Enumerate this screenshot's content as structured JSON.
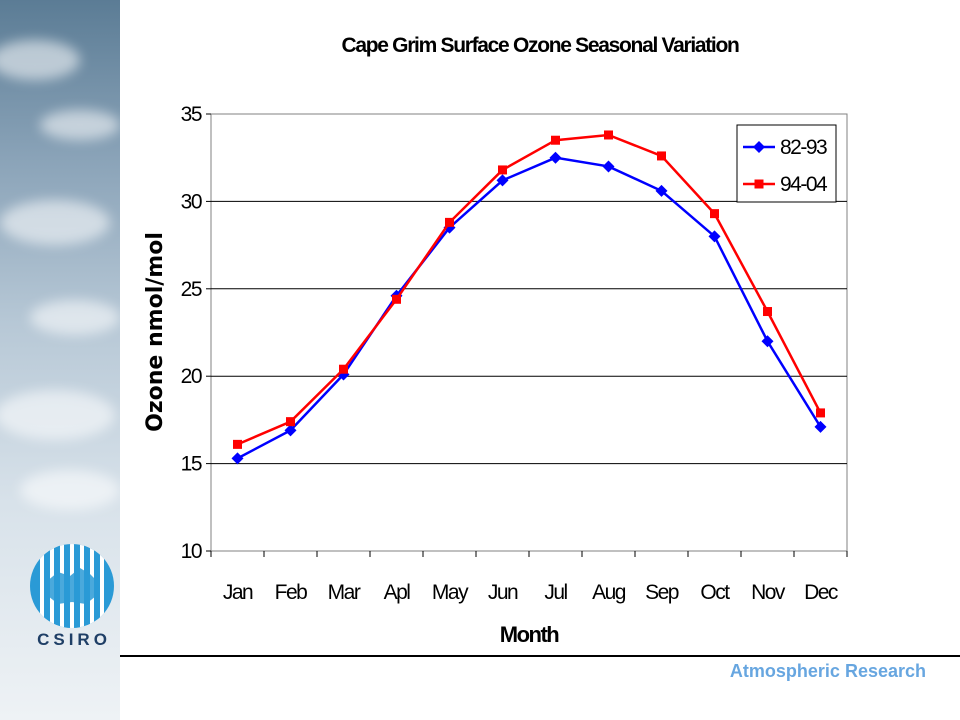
{
  "chart_data": {
    "type": "line",
    "title": "Cape Grim Surface Ozone Seasonal Variation",
    "xlabel": "Month",
    "ylabel": "Ozone nmol/mol",
    "categories": [
      "Jan",
      "Feb",
      "Mar",
      "Apl",
      "May",
      "Jun",
      "Jul",
      "Aug",
      "Sep",
      "Oct",
      "Nov",
      "Dec"
    ],
    "ylim": [
      10,
      35
    ],
    "yticks": [
      10,
      15,
      20,
      25,
      30,
      35
    ],
    "grid": "horizontal",
    "legend": "top-right",
    "series": [
      {
        "name": "82-93",
        "color": "#0000ff",
        "marker": "diamond",
        "values": [
          15.3,
          16.9,
          20.1,
          24.6,
          28.5,
          31.2,
          32.5,
          32.0,
          30.6,
          28.0,
          22.0,
          17.1
        ]
      },
      {
        "name": "94-04",
        "color": "#ff0000",
        "marker": "square",
        "values": [
          16.1,
          17.4,
          20.4,
          24.4,
          28.8,
          31.8,
          33.5,
          33.8,
          32.6,
          29.3,
          23.7,
          17.9
        ]
      }
    ]
  },
  "branding": {
    "logo_text": "CSIRO",
    "footer_text": "Atmospheric Research"
  }
}
